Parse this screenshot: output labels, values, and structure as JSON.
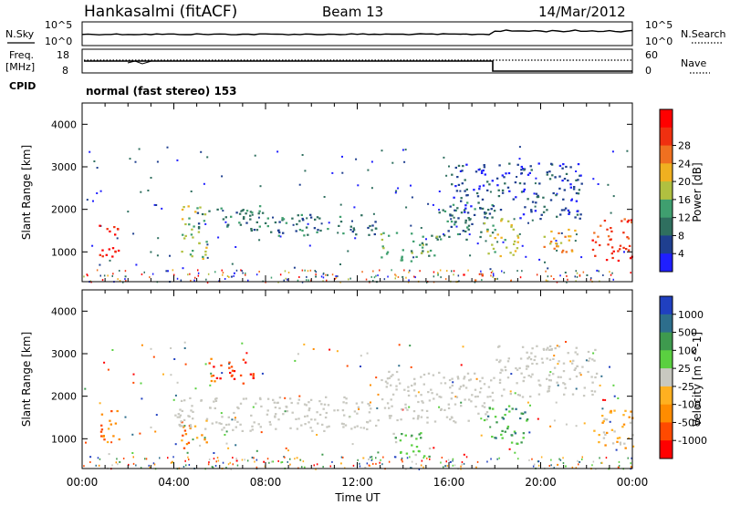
{
  "header": {
    "station": "Hankasalmi (fitACF)",
    "beam": "Beam 13",
    "date": "14/Mar/2012",
    "mode_text": "normal (fast stereo) 153"
  },
  "sky_panel": {
    "left_label": "N.Sky",
    "right_label": "N.Search",
    "left_ticks": [
      "10^5",
      "10^0"
    ],
    "right_ticks": [
      "10^5",
      "10^0"
    ]
  },
  "freq_panel": {
    "left_label_1": "Freq.",
    "left_label_2": "[MHz]",
    "right_label": "Nave",
    "cpid_label": "CPID",
    "left_ticks": [
      "18",
      "8"
    ],
    "right_ticks": [
      "60",
      "0"
    ]
  },
  "colors": {
    "power_scale": [
      "#1f1fff",
      "#1f3f8f",
      "#2f6f5f",
      "#3f9f6f",
      "#b0c040",
      "#f0b020",
      "#f07020",
      "#f03010",
      "#ff0000"
    ],
    "velocity_scale": [
      "#ff0000",
      "#ff4a00",
      "#ff8c00",
      "#ffb020",
      "#c8c8c0",
      "#5ad040",
      "#3e9a4e",
      "#2d6e8c",
      "#2040c0"
    ],
    "gray_scatter": "#c8c8c0"
  },
  "chart_data": [
    {
      "type": "heatmap",
      "name": "power",
      "ylabel": "Slant Range [km]",
      "yticks": [
        "1000",
        "2000",
        "3000",
        "4000"
      ],
      "ylim": [
        300,
        4500
      ],
      "xlim": [
        0,
        24
      ],
      "colorbar_label": "Power [dB]",
      "colorbar_ticks": [
        "4",
        "8",
        "12",
        "16",
        "20",
        "24",
        "28"
      ],
      "regions": [
        {
          "t0": 0.7,
          "t1": 1.6,
          "r0": 900,
          "r1": 1750,
          "level": 8
        },
        {
          "t0": 4.3,
          "t1": 5.4,
          "r0": 800,
          "r1": 2100,
          "level": 4
        },
        {
          "t0": 5.0,
          "t1": 8.0,
          "r0": 1500,
          "r1": 2100,
          "level": 2
        },
        {
          "t0": 8.0,
          "t1": 13.0,
          "r0": 1400,
          "r1": 1900,
          "level": 2
        },
        {
          "t0": 13.0,
          "t1": 15.5,
          "r0": 800,
          "r1": 1500,
          "level": 3
        },
        {
          "t0": 15.5,
          "t1": 18.0,
          "r0": 1300,
          "r1": 2200,
          "level": 2
        },
        {
          "t0": 16.0,
          "t1": 21.8,
          "r0": 1800,
          "r1": 3100,
          "level": 1
        },
        {
          "t0": 17.5,
          "t1": 19.0,
          "r0": 900,
          "r1": 1800,
          "level": 4
        },
        {
          "t0": 19.8,
          "t1": 21.5,
          "r0": 1000,
          "r1": 1600,
          "level": 5
        },
        {
          "t0": 22.2,
          "t1": 24.0,
          "r0": 800,
          "r1": 1800,
          "level": 7
        },
        {
          "t0": 16.5,
          "t1": 17.5,
          "r0": 300,
          "r1": 500,
          "level": 7
        }
      ]
    },
    {
      "type": "heatmap",
      "name": "velocity",
      "ylabel": "Slant Range [km]",
      "yticks": [
        "1000",
        "2000",
        "3000",
        "4000"
      ],
      "ylim": [
        300,
        4500
      ],
      "xlim": [
        0,
        24
      ],
      "colorbar_label": "Velocity [m s^-1]",
      "colorbar_ticks": [
        "-1000",
        "-500",
        "-100",
        "-25",
        "25",
        "100",
        "500",
        "1000"
      ],
      "regions": [
        {
          "t0": 0.7,
          "t1": 1.6,
          "r0": 900,
          "r1": 1750,
          "level": 2
        },
        {
          "t0": 4.3,
          "t1": 5.4,
          "r0": 800,
          "r1": 1500,
          "level": 2
        },
        {
          "t0": 4.0,
          "t1": 13.0,
          "r0": 1200,
          "r1": 2000,
          "level": 4
        },
        {
          "t0": 13.0,
          "t1": 18.0,
          "r0": 1400,
          "r1": 2600,
          "level": 4
        },
        {
          "t0": 18.0,
          "t1": 22.5,
          "r0": 2000,
          "r1": 3200,
          "level": 4
        },
        {
          "t0": 13.5,
          "t1": 15.3,
          "r0": 600,
          "r1": 1200,
          "level": 5
        },
        {
          "t0": 17.5,
          "t1": 19.5,
          "r0": 900,
          "r1": 1800,
          "level": 6
        },
        {
          "t0": 22.2,
          "t1": 24.0,
          "r0": 800,
          "r1": 1700,
          "level": 3
        },
        {
          "t0": 5.5,
          "t1": 7.5,
          "r0": 2300,
          "r1": 2900,
          "level": 1
        }
      ]
    }
  ],
  "xaxis": {
    "label": "Time UT",
    "ticks": [
      "00:00",
      "04:00",
      "08:00",
      "12:00",
      "16:00",
      "20:00",
      "00:00"
    ],
    "tick_hours": [
      0,
      4,
      8,
      12,
      16,
      20,
      24
    ]
  }
}
